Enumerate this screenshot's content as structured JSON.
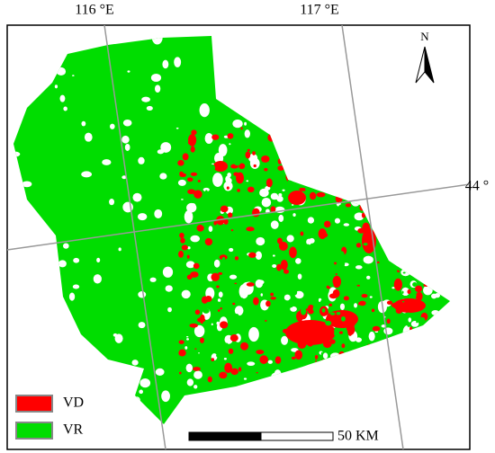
{
  "labels": {
    "lon_left": "116 °E",
    "lon_right": "117 °E",
    "lat": "44 °"
  },
  "north": "N",
  "legend": [
    {
      "label": "VD",
      "color": "#ff0000"
    },
    {
      "label": "VR",
      "color": "#00dd00"
    }
  ],
  "scale_bar": "50 KM"
}
